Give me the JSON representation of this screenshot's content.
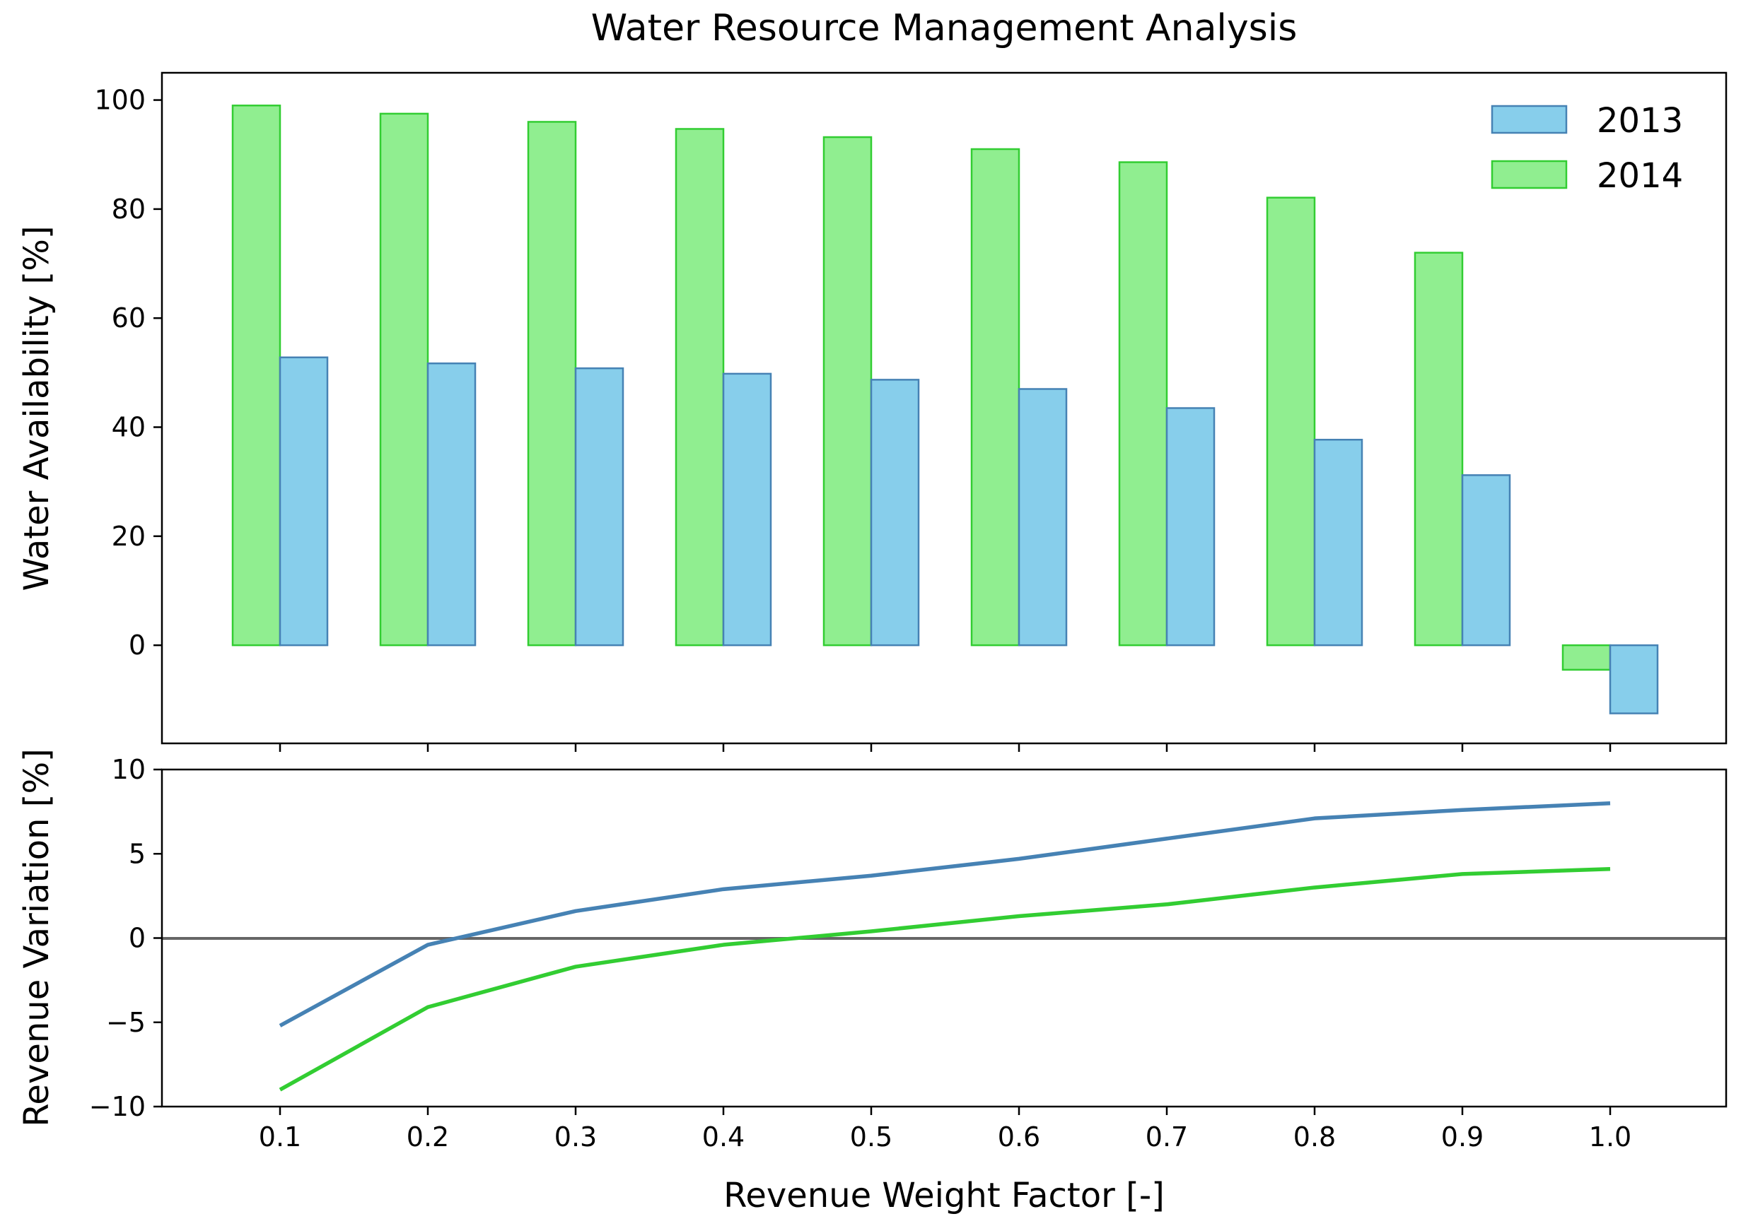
{
  "chart_data": {
    "type": "bar+line",
    "title": "Water Resource Management Analysis",
    "xlabel": "Revenue Weight Factor [-]",
    "categories": [
      "0.1",
      "0.2",
      "0.3",
      "0.4",
      "0.5",
      "0.6",
      "0.7",
      "0.8",
      "0.9",
      "1.0"
    ],
    "top_panel": {
      "type": "bar",
      "ylabel": "Water Availability [%]",
      "ylim": [
        -18,
        105
      ],
      "yticks": [
        "0",
        "20",
        "40",
        "60",
        "80",
        "100"
      ],
      "ytick_values": [
        0,
        20,
        40,
        60,
        80,
        100
      ],
      "series": [
        {
          "name": "2014",
          "values": [
            99.0,
            97.5,
            96.0,
            94.7,
            93.2,
            91.0,
            88.6,
            82.1,
            72.0,
            -4.5
          ],
          "fill": "#90ee90",
          "stroke": "#32cd32"
        },
        {
          "name": "2013",
          "values": [
            52.8,
            51.7,
            50.8,
            49.8,
            48.7,
            47.0,
            43.5,
            37.7,
            31.2,
            -12.5
          ],
          "fill": "#87ceeb",
          "stroke": "#4682b4"
        }
      ],
      "legend": {
        "position": "top-right",
        "entries": [
          "2013",
          "2014"
        ]
      }
    },
    "bottom_panel": {
      "type": "line",
      "ylabel": "Revenue Variation [%]",
      "ylim": [
        -10,
        10
      ],
      "yticks": [
        "−10",
        "−5",
        "0",
        "5",
        "10"
      ],
      "ytick_values": [
        -10,
        -5,
        0,
        5,
        10
      ],
      "reference_line": 0,
      "series": [
        {
          "name": "2013",
          "values": [
            -5.2,
            -0.4,
            1.6,
            2.9,
            3.7,
            4.7,
            5.9,
            7.1,
            7.6,
            8.0
          ],
          "color": "#4682b4"
        },
        {
          "name": "2014",
          "values": [
            -9.0,
            -4.1,
            -1.7,
            -0.4,
            0.4,
            1.3,
            2.0,
            3.0,
            3.8,
            4.1
          ],
          "color": "#32cd32"
        }
      ]
    }
  }
}
